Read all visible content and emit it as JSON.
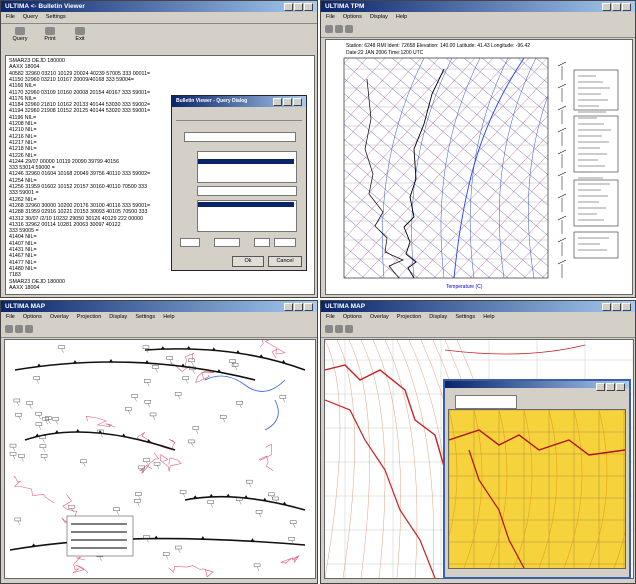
{
  "bulletin_window": {
    "title": "ULTIMA <- Bulletin Viewer",
    "menu": [
      "File",
      "Query",
      "Settings"
    ],
    "toolbar": [
      "Query",
      "Print",
      "Exit"
    ],
    "lines": [
      "SMAR23 OEJD 180000",
      "AAXX 18004",
      "40582 32960 03210 10129 20024 40239 57005 333 00011=",
      "41150 32960 03210 10167 20009/40168 333 59004=",
      "41166 NIL=",
      "41170 32960 03109 10160 20008 20154 40167 333 59001=",
      "41176 NIL=",
      "41184 32960 21810 10162 20133 40144 53030 333 59002=",
      "41194 32960 21908 10152 20125 40144 53020 333 59001=",
      "41196 NIL=",
      "41208 NIL=",
      "41210 NIL=",
      "41216 NIL=",
      "41217 NIL=",
      "41218 NIL=",
      "41226 NIL=",
      "41244 29/07 00000 10119 20090 39799 40156",
      "333 53014 59000 =",
      "41246 32960 01604 10168 20049 39756 40110 333 59002=",
      "41254 NIL=",
      "41256 31959 01602 10152 20157 30160 40110 70500 333",
      "333 59001 =",
      "41262 NIL=",
      "41268 32960 30000 10200 20176 30100 40116 333 59001=",
      "41288 31959 02916 10221 20153 30093 40105 70500 333",
      "41312 30/07 /2/10 10232 29050 30126 40129 222 00000",
      "41316 32962 00114 10281 20063 30097 40122",
      "333 59005 =",
      "41404 NIL=",
      "41407 NIL=",
      "41431 NIL=",
      "41467 NIL=",
      "41477 NIL=",
      "41480 NIL=",
      "7183",
      "SMAR23 OEJD 180000",
      "AAXX 18004"
    ]
  },
  "query_dialog": {
    "title": "Bulletin Viewer - Query Dialog",
    "buttons": [
      "Ok",
      "Cancel"
    ]
  },
  "skewt_window": {
    "title": "ULTIMA TPM",
    "menu": [
      "File",
      "Options",
      "Display",
      "Help"
    ],
    "header": [
      "Station: 6248 RMI  Ident: 72658  Elevation: 140.00  Latitude: 41.43  Longitude: -96.42",
      "Date:22 JAN 2006   Time:1200 UTC"
    ],
    "x_label": "Temperature (C)"
  },
  "map_window_left": {
    "title": "ULTIMA MAP",
    "menu": [
      "File",
      "Options",
      "Overlay",
      "Projection",
      "Display",
      "Settings",
      "Help"
    ]
  },
  "map_window_right": {
    "title": "ULTIMA MAP",
    "menu": [
      "File",
      "Options",
      "Overlay",
      "Projection",
      "Display",
      "Settings",
      "Help"
    ]
  }
}
